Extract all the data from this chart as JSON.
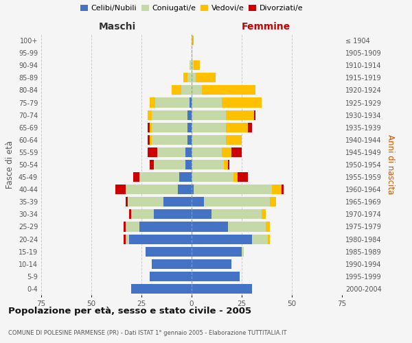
{
  "age_groups": [
    "0-4",
    "5-9",
    "10-14",
    "15-19",
    "20-24",
    "25-29",
    "30-34",
    "35-39",
    "40-44",
    "45-49",
    "50-54",
    "55-59",
    "60-64",
    "65-69",
    "70-74",
    "75-79",
    "80-84",
    "85-89",
    "90-94",
    "95-99",
    "100+"
  ],
  "year_labels": [
    "2000-2004",
    "1995-1999",
    "1990-1994",
    "1985-1989",
    "1980-1984",
    "1975-1979",
    "1970-1974",
    "1965-1969",
    "1960-1964",
    "1955-1959",
    "1950-1954",
    "1945-1949",
    "1940-1944",
    "1935-1939",
    "1930-1934",
    "1925-1929",
    "1920-1924",
    "1915-1919",
    "1910-1914",
    "1905-1909",
    "≤ 1904"
  ],
  "maschi": {
    "celibi": [
      30,
      21,
      20,
      23,
      31,
      26,
      19,
      14,
      7,
      6,
      3,
      3,
      2,
      2,
      2,
      1,
      0,
      0,
      0,
      0,
      0
    ],
    "coniugati": [
      0,
      0,
      0,
      0,
      2,
      7,
      11,
      18,
      26,
      20,
      16,
      14,
      18,
      18,
      18,
      17,
      5,
      2,
      1,
      0,
      0
    ],
    "vedovi": [
      0,
      0,
      0,
      0,
      0,
      0,
      0,
      0,
      0,
      0,
      0,
      0,
      1,
      1,
      2,
      3,
      5,
      2,
      0,
      0,
      0
    ],
    "divorziati": [
      0,
      0,
      0,
      0,
      1,
      1,
      1,
      1,
      5,
      3,
      2,
      5,
      1,
      1,
      0,
      0,
      0,
      0,
      0,
      0,
      0
    ]
  },
  "femmine": {
    "nubili": [
      30,
      24,
      20,
      25,
      30,
      18,
      10,
      6,
      1,
      0,
      0,
      0,
      0,
      0,
      0,
      0,
      0,
      0,
      0,
      0,
      0
    ],
    "coniugate": [
      0,
      0,
      0,
      1,
      8,
      19,
      25,
      33,
      39,
      21,
      16,
      15,
      17,
      17,
      17,
      15,
      5,
      2,
      1,
      0,
      0
    ],
    "vedove": [
      0,
      0,
      0,
      0,
      1,
      2,
      2,
      3,
      5,
      2,
      2,
      5,
      8,
      11,
      14,
      20,
      27,
      10,
      3,
      0,
      1
    ],
    "divorziate": [
      0,
      0,
      0,
      0,
      0,
      0,
      0,
      0,
      1,
      5,
      1,
      5,
      0,
      2,
      1,
      0,
      0,
      0,
      0,
      0,
      0
    ]
  },
  "colors": {
    "celibi_nubili": "#4472c4",
    "coniugati": "#c5d9a8",
    "vedovi": "#ffc000",
    "divorziati": "#cc0000"
  },
  "title": "Popolazione per età, sesso e stato civile - 2005",
  "subtitle": "COMUNE DI POLESINE PARMENSE (PR) - Dati ISTAT 1° gennaio 2005 - Elaborazione TUTTITALIA.IT",
  "xlabel_left": "Maschi",
  "xlabel_right": "Femmine",
  "ylabel_left": "Fasce di età",
  "ylabel_right": "Anni di nascita",
  "xlim": 75,
  "background_color": "#f5f5f5",
  "grid_color": "#cccccc"
}
